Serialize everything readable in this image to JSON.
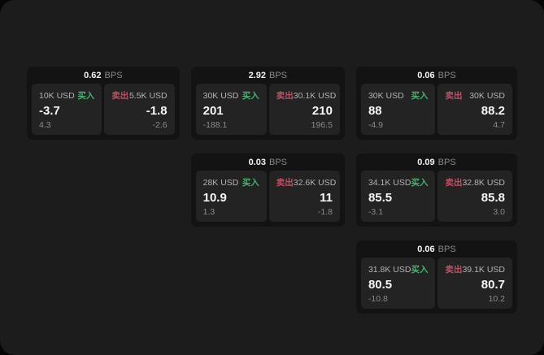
{
  "labels": {
    "bps_unit": "BPS",
    "buy": "买入",
    "sell": "卖出"
  },
  "colors": {
    "outer_background": "#060606",
    "window_background": "#1c1c1d",
    "card_background": "#131314",
    "panel_background": "#232324",
    "buy_green": "#43b36f",
    "sell_red": "#c24e63",
    "primary_text": "#f5f5f5",
    "muted_text": "#8a8a8d"
  },
  "cards": [
    {
      "bps": "0.62",
      "buy": {
        "amount": "10K USD",
        "price": "-3.7",
        "delta": "4.3"
      },
      "sell": {
        "amount": "5.5K USD",
        "price": "-1.8",
        "delta": "-2.6"
      }
    },
    {
      "bps": "2.92",
      "buy": {
        "amount": "30K USD",
        "price": "201",
        "delta": "-188.1"
      },
      "sell": {
        "amount": "30.1K USD",
        "price": "210",
        "delta": "196.5"
      }
    },
    {
      "bps": "0.06",
      "buy": {
        "amount": "30K USD",
        "price": "88",
        "delta": "-4.9"
      },
      "sell": {
        "amount": "30K USD",
        "price": "88.2",
        "delta": "4.7"
      }
    },
    {
      "bps": "0.03",
      "buy": {
        "amount": "28K USD",
        "price": "10.9",
        "delta": "1.3"
      },
      "sell": {
        "amount": "32.6K USD",
        "price": "11",
        "delta": "-1.8"
      }
    },
    {
      "bps": "0.09",
      "buy": {
        "amount": "34.1K USD",
        "price": "85.5",
        "delta": "-3.1"
      },
      "sell": {
        "amount": "32.8K USD",
        "price": "85.8",
        "delta": "3.0"
      }
    },
    {
      "bps": "0.06",
      "buy": {
        "amount": "31.8K USD",
        "price": "80.5",
        "delta": "-10.8"
      },
      "sell": {
        "amount": "39.1K USD",
        "price": "80.7",
        "delta": "10.2"
      }
    }
  ]
}
